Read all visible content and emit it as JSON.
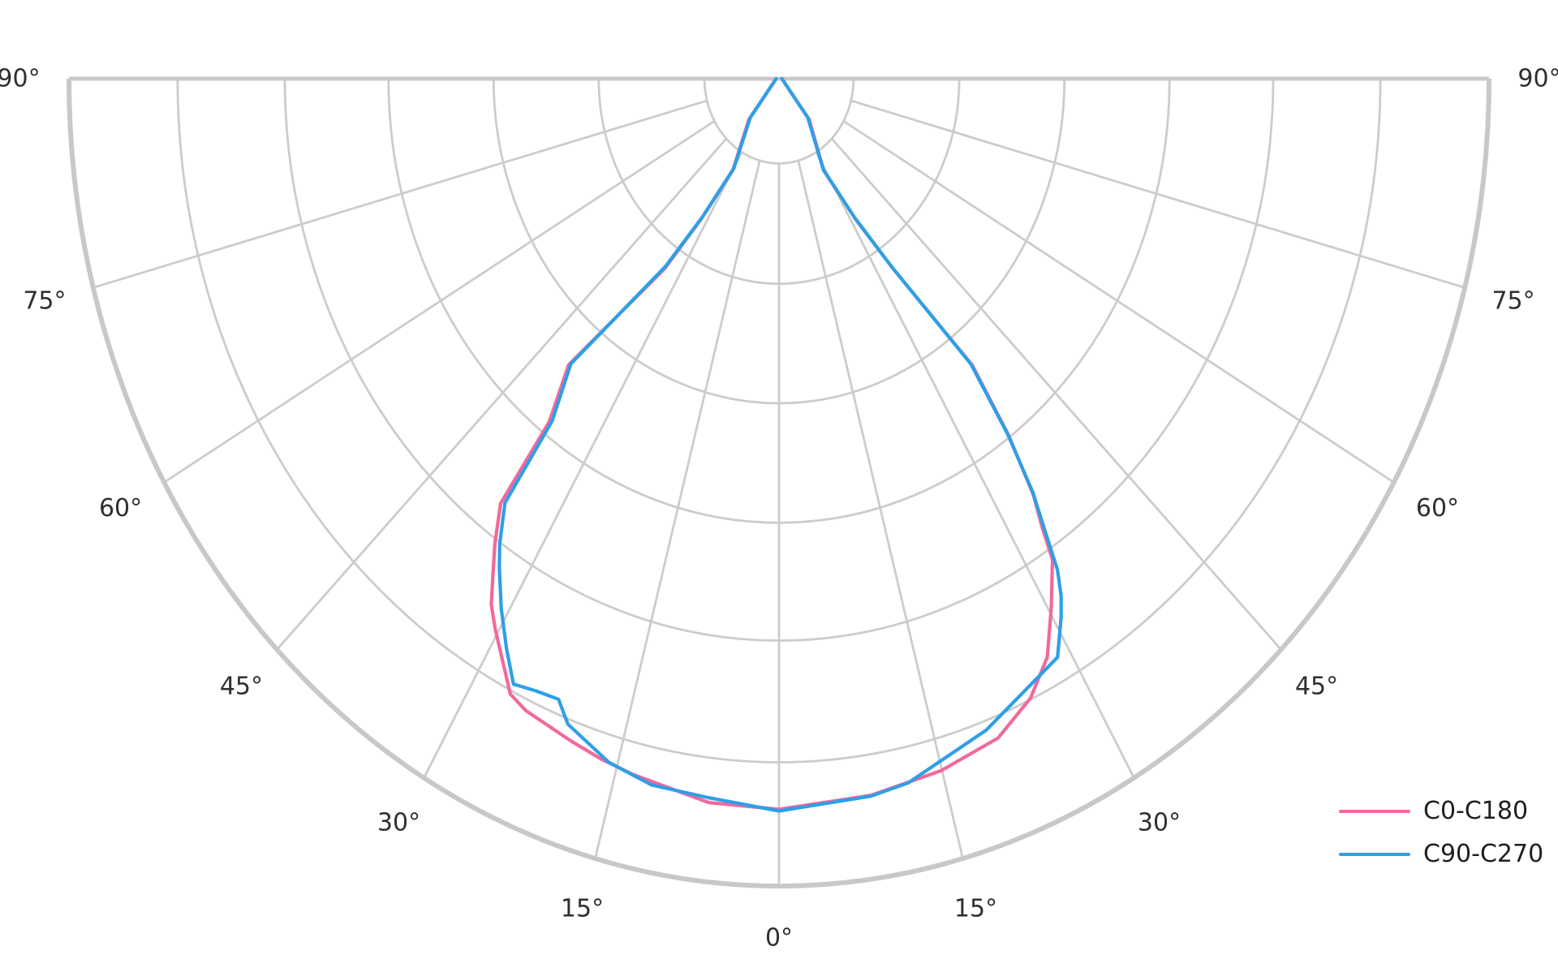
{
  "figure": {
    "background": "#ffffff"
  },
  "chart_data": {
    "type": "line",
    "subtype": "semicircular-polar-photometric-intensity-diagram",
    "title": "",
    "legend": {
      "position": "lower-right"
    },
    "angle_axis": {
      "unit": "degrees from nadir",
      "zero_location": "bottom",
      "range_deg": [
        -90,
        90
      ],
      "grid_step_deg": 15,
      "ticks": [
        {
          "angle": -90,
          "label": "90°"
        },
        {
          "angle": -75,
          "label": "75°"
        },
        {
          "angle": -60,
          "label": "60°"
        },
        {
          "angle": -45,
          "label": "45°"
        },
        {
          "angle": -30,
          "label": "30°"
        },
        {
          "angle": -15,
          "label": "15°"
        },
        {
          "angle": 0,
          "label": "0°"
        },
        {
          "angle": 15,
          "label": "15°"
        },
        {
          "angle": 30,
          "label": "30°"
        },
        {
          "angle": 45,
          "label": "45°"
        },
        {
          "angle": 60,
          "label": "60°"
        },
        {
          "angle": 75,
          "label": "75°"
        },
        {
          "angle": 90,
          "label": "90°"
        }
      ]
    },
    "radial_axis": {
      "min": 0,
      "max": 1.0,
      "ring_fractions": [
        0.105,
        0.254,
        0.402,
        0.55,
        0.696,
        0.847
      ],
      "tick_labels_visible": false
    },
    "style": {
      "background": "#ffffff",
      "grid_color": "#cccccc",
      "outline_color": "#c8c8c8",
      "label_color": "#2f2f2f"
    },
    "series": [
      {
        "name": "C0-C180",
        "color": "#F1699D",
        "points": [
          [
            -90.0,
            0.004
          ],
          [
            -40.0,
            0.066
          ],
          [
            -29.8,
            0.131
          ],
          [
            -32.2,
            0.205
          ],
          [
            -34.4,
            0.285
          ],
          [
            -39.9,
            0.462
          ],
          [
            -37.3,
            0.534
          ],
          [
            -36.7,
            0.656
          ],
          [
            -34.8,
            0.701
          ],
          [
            -33.6,
            0.727
          ],
          [
            -31.9,
            0.767
          ],
          [
            -30.4,
            0.79
          ],
          [
            -26.4,
            0.851
          ],
          [
            -24.5,
            0.86
          ],
          [
            -19.7,
            0.871
          ],
          [
            -16.6,
            0.879
          ],
          [
            -13.4,
            0.886
          ],
          [
            -6.3,
            0.902
          ],
          [
            0.0,
            0.905
          ],
          [
            8.3,
            0.897
          ],
          [
            14.9,
            0.887
          ],
          [
            20.7,
            0.873
          ],
          [
            24.8,
            0.845
          ],
          [
            27.8,
            0.81
          ],
          [
            30.3,
            0.76
          ],
          [
            32.9,
            0.709
          ],
          [
            33.7,
            0.668
          ],
          [
            34.8,
            0.628
          ],
          [
            36.2,
            0.548
          ],
          [
            37.5,
            0.447
          ],
          [
            34.3,
            0.284
          ],
          [
            31.8,
            0.205
          ],
          [
            29.0,
            0.13
          ],
          [
            40.1,
            0.066
          ],
          [
            90.0,
            0.004
          ]
        ]
      },
      {
        "name": "C90-C270",
        "color": "#2E9FE6",
        "points": [
          [
            -90.0,
            0.004
          ],
          [
            -40.0,
            0.063
          ],
          [
            -29.8,
            0.128
          ],
          [
            -32.2,
            0.202
          ],
          [
            -34.5,
            0.282
          ],
          [
            -39.7,
            0.459
          ],
          [
            -37.0,
            0.531
          ],
          [
            -36.3,
            0.652
          ],
          [
            -34.3,
            0.698
          ],
          [
            -33.0,
            0.723
          ],
          [
            -30.8,
            0.764
          ],
          [
            -28.5,
            0.804
          ],
          [
            -26.5,
            0.838
          ],
          [
            -24.3,
            0.832
          ],
          [
            -22.0,
            0.829
          ],
          [
            -20.4,
            0.853
          ],
          [
            -15.8,
            0.88
          ],
          [
            -11.6,
            0.893
          ],
          [
            -6.4,
            0.896
          ],
          [
            0.0,
            0.907
          ],
          [
            8.3,
            0.898
          ],
          [
            11.8,
            0.891
          ],
          [
            19.9,
            0.858
          ],
          [
            24.2,
            0.835
          ],
          [
            28.7,
            0.817
          ],
          [
            30.8,
            0.776
          ],
          [
            31.8,
            0.754
          ],
          [
            32.8,
            0.724
          ],
          [
            34.1,
            0.659
          ],
          [
            34.9,
            0.625
          ],
          [
            36.2,
            0.545
          ],
          [
            37.4,
            0.445
          ],
          [
            34.3,
            0.283
          ],
          [
            31.8,
            0.203
          ],
          [
            29.0,
            0.129
          ],
          [
            40.1,
            0.063
          ],
          [
            90.0,
            0.004
          ]
        ]
      }
    ]
  }
}
